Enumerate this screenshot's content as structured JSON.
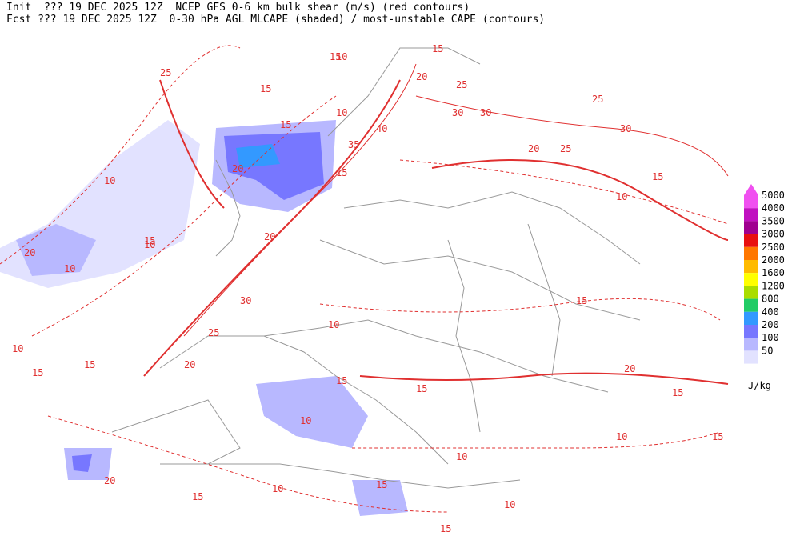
{
  "header": {
    "line1": "Init  ??? 19 DEC 2025 12Z  NCEP GFS 0-6 km bulk shear (m/s) (red contours)",
    "line2": "Fcst ??? 19 DEC 2025 12Z  0-30 hPa AGL MLCAPE (shaded) / most-unstable CAPE (contours)"
  },
  "legend": {
    "levels": [
      5000,
      4000,
      3500,
      3000,
      2500,
      2000,
      1600,
      1200,
      800,
      400,
      200,
      100,
      50
    ],
    "colors": [
      "#f050f0",
      "#c010c0",
      "#a00090",
      "#e81010",
      "#ff7700",
      "#ffbb00",
      "#ffff00",
      "#aadd00",
      "#22cc66",
      "#3399ff",
      "#7777ff",
      "#b8b8ff",
      "#e2e2ff"
    ],
    "unit": "J/kg"
  },
  "contour_labels": [
    15,
    10,
    15,
    20,
    25,
    30,
    20,
    10,
    15,
    25,
    30,
    25,
    20,
    25,
    15,
    10,
    15,
    20,
    10,
    15,
    30,
    25,
    20,
    15,
    10,
    10,
    15,
    10,
    20,
    15,
    10,
    15,
    10,
    20,
    15,
    10,
    15,
    10,
    15,
    20,
    15,
    10,
    15,
    40,
    35,
    30,
    15,
    10,
    15
  ]
}
